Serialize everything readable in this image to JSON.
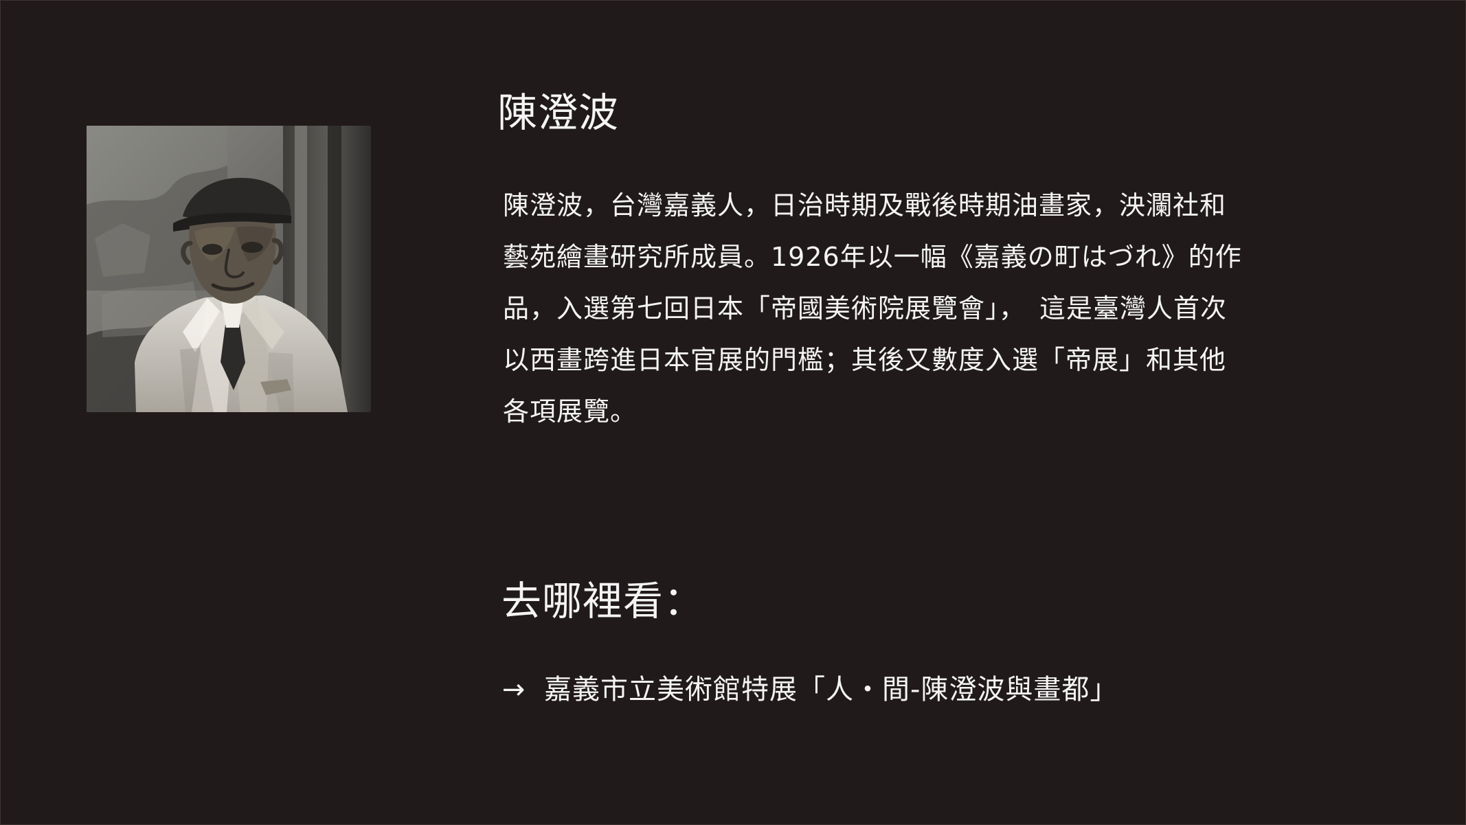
{
  "profile": {
    "name": "陳澄波",
    "bio": "陳澄波，台灣嘉義人，日治時期及戰後時期油畫家，泱瀾社和藝苑繪畫研究所成員。1926年以一幅《嘉義の町はづれ》的作品，入選第七回日本「帝國美術院展覽會」，　這是臺灣人首次以西畫跨進日本官展的門檻；其後又數度入選「帝展」和其他各項展覽。"
  },
  "where": {
    "heading": "去哪裡看：",
    "arrow": "→",
    "venue": "嘉義市立美術館特展「人・間-陳澄波與畫都」"
  },
  "colors": {
    "background": "#211a1a",
    "text": "#f4f4f4"
  },
  "icons": {
    "portrait": "portrait-photo",
    "arrow": "right-arrow-icon"
  }
}
